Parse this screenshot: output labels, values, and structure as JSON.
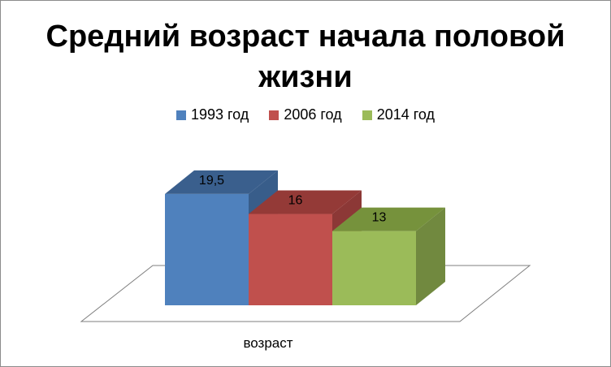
{
  "chart_data": {
    "type": "bar",
    "title": "Средний возраст начала половой жизни",
    "categories": [
      "возраст"
    ],
    "series": [
      {
        "name": "1993 год",
        "values": [
          19.5
        ],
        "label": "19,5",
        "color": "#4f81bd",
        "side": "#385d8a",
        "top": "#3a5f8d"
      },
      {
        "name": "2006 год",
        "values": [
          16
        ],
        "label": "16",
        "color": "#c0504d",
        "side": "#8c3836",
        "top": "#943a37"
      },
      {
        "name": "2014 год",
        "values": [
          13
        ],
        "label": "13",
        "color": "#9bbb59",
        "side": "#71893f",
        "top": "#76923c"
      }
    ],
    "legend_position": "top",
    "grid": false
  }
}
